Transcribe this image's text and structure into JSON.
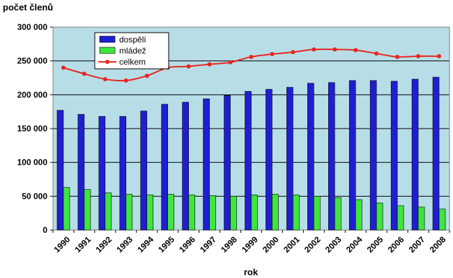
{
  "chart_data": {
    "type": "bar",
    "title": "",
    "ylabel": "počet členů",
    "xlabel": "rok",
    "ylim": [
      0,
      300000
    ],
    "yticks": [
      0,
      50000,
      100000,
      150000,
      200000,
      250000,
      300000
    ],
    "ytick_labels": [
      "0",
      "50 000",
      "100 000",
      "150 000",
      "200 000",
      "250 000",
      "300 000"
    ],
    "grid": true,
    "legend_position": "top-left",
    "plot_background": "#b7dde7",
    "categories": [
      "1990",
      "1991",
      "1992",
      "1993",
      "1994",
      "1995",
      "1996",
      "1997",
      "1998",
      "1999",
      "2000",
      "2001",
      "2002",
      "2003",
      "2004",
      "2005",
      "2006",
      "2007",
      "2008"
    ],
    "series": [
      {
        "name": "dospělí",
        "type": "bar",
        "color": "#1f1fd1",
        "values": [
          177000,
          171000,
          168000,
          168000,
          176000,
          186000,
          189000,
          194000,
          199000,
          205000,
          208000,
          211000,
          217000,
          218000,
          221000,
          221000,
          220000,
          223000,
          226000
        ]
      },
      {
        "name": "mládež",
        "type": "bar",
        "color": "#3ee63e",
        "values": [
          63000,
          60000,
          55000,
          53000,
          52000,
          53000,
          52000,
          51000,
          50000,
          52000,
          53000,
          52000,
          50000,
          48000,
          45000,
          40000,
          36000,
          34000,
          31000
        ]
      },
      {
        "name": "celkem",
        "type": "line",
        "color": "#e8261f",
        "values": [
          240000,
          231000,
          223000,
          221000,
          228000,
          240000,
          242000,
          245000,
          248000,
          256000,
          260000,
          263000,
          267000,
          267000,
          266000,
          261000,
          256000,
          257000,
          257000
        ]
      }
    ]
  }
}
